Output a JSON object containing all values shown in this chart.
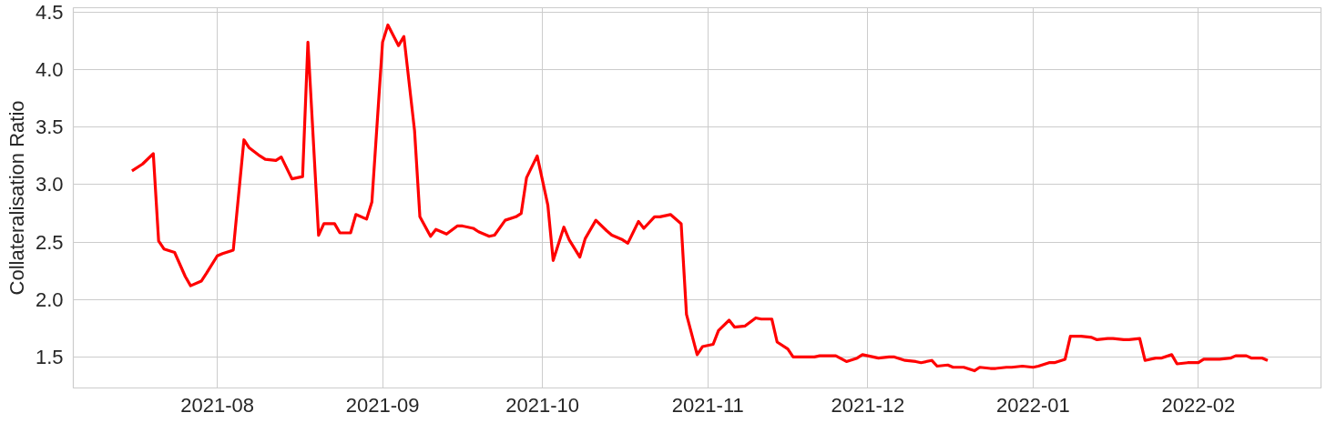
{
  "chart_data": {
    "type": "line",
    "ylabel": "Collateralisation Ratio",
    "x": [
      "2021-07-16",
      "2021-07-18",
      "2021-07-20",
      "2021-07-21",
      "2021-07-22",
      "2021-07-24",
      "2021-07-26",
      "2021-07-27",
      "2021-07-29",
      "2021-07-30",
      "2021-08-01",
      "2021-08-02",
      "2021-08-04",
      "2021-08-06",
      "2021-08-07",
      "2021-08-09",
      "2021-08-10",
      "2021-08-12",
      "2021-08-13",
      "2021-08-15",
      "2021-08-17",
      "2021-08-18",
      "2021-08-20",
      "2021-08-21",
      "2021-08-23",
      "2021-08-24",
      "2021-08-26",
      "2021-08-27",
      "2021-08-29",
      "2021-08-30",
      "2021-09-01",
      "2021-09-02",
      "2021-09-04",
      "2021-09-05",
      "2021-09-07",
      "2021-09-08",
      "2021-09-10",
      "2021-09-11",
      "2021-09-13",
      "2021-09-15",
      "2021-09-16",
      "2021-09-18",
      "2021-09-19",
      "2021-09-21",
      "2021-09-22",
      "2021-09-24",
      "2021-09-26",
      "2021-09-27",
      "2021-09-28",
      "2021-09-30",
      "2021-10-02",
      "2021-10-03",
      "2021-10-05",
      "2021-10-06",
      "2021-10-08",
      "2021-10-09",
      "2021-10-11",
      "2021-10-13",
      "2021-10-14",
      "2021-10-16",
      "2021-10-17",
      "2021-10-19",
      "2021-10-20",
      "2021-10-22",
      "2021-10-23",
      "2021-10-25",
      "2021-10-27",
      "2021-10-28",
      "2021-10-30",
      "2021-10-31",
      "2021-11-02",
      "2021-11-03",
      "2021-11-05",
      "2021-11-06",
      "2021-11-08",
      "2021-11-10",
      "2021-11-11",
      "2021-11-13",
      "2021-11-14",
      "2021-11-16",
      "2021-11-17",
      "2021-11-19",
      "2021-11-21",
      "2021-11-22",
      "2021-11-24",
      "2021-11-25",
      "2021-11-27",
      "2021-11-29",
      "2021-11-30",
      "2021-12-02",
      "2021-12-03",
      "2021-12-05",
      "2021-12-06",
      "2021-12-08",
      "2021-12-10",
      "2021-12-11",
      "2021-12-13",
      "2021-12-14",
      "2021-12-16",
      "2021-12-17",
      "2021-12-19",
      "2021-12-21",
      "2021-12-22",
      "2021-12-24",
      "2021-12-25",
      "2021-12-27",
      "2021-12-28",
      "2021-12-30",
      "2022-01-01",
      "2022-01-02",
      "2022-01-04",
      "2022-01-05",
      "2022-01-07",
      "2022-01-08",
      "2022-01-10",
      "2022-01-12",
      "2022-01-13",
      "2022-01-15",
      "2022-01-16",
      "2022-01-18",
      "2022-01-19",
      "2022-01-21",
      "2022-01-22",
      "2022-01-24",
      "2022-01-25",
      "2022-01-27",
      "2022-01-28",
      "2022-01-30",
      "2022-02-01",
      "2022-02-02",
      "2022-02-04",
      "2022-02-05",
      "2022-02-07",
      "2022-02-08",
      "2022-02-10",
      "2022-02-11",
      "2022-02-13",
      "2022-02-14"
    ],
    "series": [
      {
        "color": "#ff0000",
        "values": [
          3.12,
          3.18,
          3.27,
          2.51,
          2.44,
          2.41,
          2.2,
          2.12,
          2.16,
          2.23,
          2.38,
          2.4,
          2.43,
          3.39,
          3.32,
          3.25,
          3.22,
          3.21,
          3.24,
          3.05,
          3.07,
          4.24,
          2.56,
          2.66,
          2.66,
          2.58,
          2.58,
          2.74,
          2.7,
          2.85,
          4.24,
          4.39,
          4.21,
          4.29,
          3.47,
          2.72,
          2.55,
          2.61,
          2.57,
          2.64,
          2.64,
          2.62,
          2.59,
          2.55,
          2.56,
          2.69,
          2.72,
          2.75,
          3.06,
          3.25,
          2.82,
          2.34,
          2.63,
          2.52,
          2.37,
          2.53,
          2.69,
          2.6,
          2.56,
          2.52,
          2.49,
          2.68,
          2.62,
          2.72,
          2.72,
          2.74,
          2.66,
          1.87,
          1.52,
          1.59,
          1.61,
          1.73,
          1.82,
          1.76,
          1.77,
          1.84,
          1.83,
          1.83,
          1.63,
          1.57,
          1.5,
          1.5,
          1.5,
          1.51,
          1.51,
          1.51,
          1.46,
          1.49,
          1.52,
          1.5,
          1.49,
          1.5,
          1.5,
          1.47,
          1.46,
          1.45,
          1.47,
          1.42,
          1.43,
          1.41,
          1.41,
          1.38,
          1.41,
          1.4,
          1.4,
          1.41,
          1.41,
          1.42,
          1.41,
          1.42,
          1.45,
          1.45,
          1.48,
          1.68,
          1.68,
          1.67,
          1.65,
          1.66,
          1.66,
          1.65,
          1.65,
          1.66,
          1.47,
          1.49,
          1.49,
          1.52,
          1.44,
          1.45,
          1.45,
          1.48,
          1.48,
          1.48,
          1.49,
          1.51,
          1.51,
          1.49,
          1.49,
          1.47
        ]
      }
    ],
    "xlim": [
      "2021-07-05",
      "2022-02-24"
    ],
    "xticks": [
      "2021-08",
      "2021-09",
      "2021-10",
      "2021-11",
      "2021-12",
      "2022-01",
      "2022-02"
    ],
    "ylim": [
      1.23,
      4.54
    ],
    "yticks": [
      1.5,
      {
        "value": 2,
        "label": "2.0"
      },
      2.5,
      {
        "value": 3,
        "label": "3.0"
      },
      3.5,
      {
        "value": 4,
        "label": "4.0"
      },
      4.5
    ],
    "grid": true,
    "line_style": "solid",
    "marker": "none"
  }
}
